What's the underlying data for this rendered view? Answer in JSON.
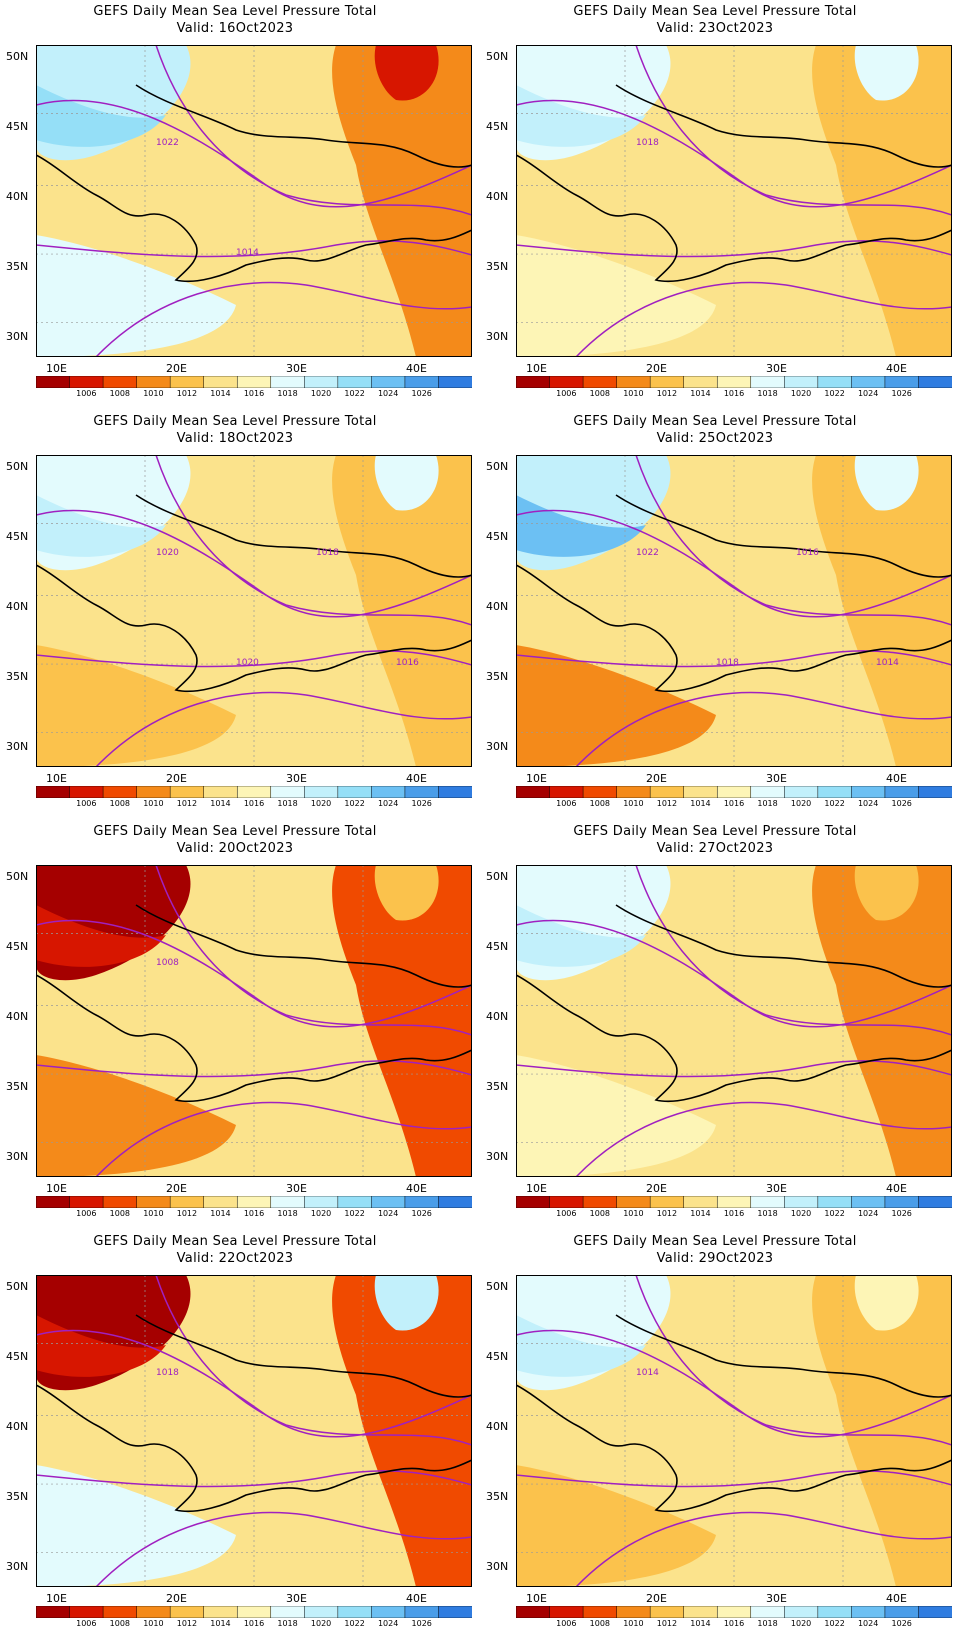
{
  "colorbar": {
    "labels": [
      "1006",
      "1008",
      "1010",
      "1012",
      "1014",
      "1016",
      "1018",
      "1020",
      "1022",
      "1024",
      "1026"
    ],
    "colors": [
      "#a50000",
      "#d71600",
      "#f04a00",
      "#f48a1a",
      "#fbc24c",
      "#fbe38c",
      "#fdf5b6",
      "#e3fbfd",
      "#c2f0fb",
      "#95dff7",
      "#6cc0f3",
      "#4a9de9",
      "#2f7ce0"
    ]
  },
  "axes": {
    "lon_ticks": [
      "10E",
      "20E",
      "30E",
      "40E"
    ],
    "lat_ticks": [
      "50N",
      "45N",
      "40N",
      "35N",
      "30N"
    ]
  },
  "panels": [
    {
      "title": "GEFS Daily Mean Sea Level Pressure Total",
      "valid": "Valid: 16Oct2023",
      "contour_labels": [
        "1022",
        "1014"
      ],
      "fields": [
        "#fbe38c",
        "#c2f0fb",
        "#95dff7",
        "#f48a1a",
        "#d71600",
        "#e3fbfd"
      ]
    },
    {
      "title": "GEFS Daily Mean Sea Level Pressure Total",
      "valid": "Valid: 23Oct2023",
      "contour_labels": [
        "1018"
      ],
      "fields": [
        "#fbe38c",
        "#e3fbfd",
        "#c2f0fb",
        "#fbc24c",
        "#e3fbfd",
        "#fdf5b6"
      ]
    },
    {
      "title": "GEFS Daily Mean Sea Level Pressure Total",
      "valid": "Valid: 18Oct2023",
      "contour_labels": [
        "1020",
        "1020",
        "1018",
        "1016"
      ],
      "fields": [
        "#fbe38c",
        "#e3fbfd",
        "#c2f0fb",
        "#fbc24c",
        "#e3fbfd",
        "#fbc24c"
      ]
    },
    {
      "title": "GEFS Daily Mean Sea Level Pressure Total",
      "valid": "Valid: 25Oct2023",
      "contour_labels": [
        "1022",
        "1018",
        "1016",
        "1014"
      ],
      "fields": [
        "#fbe38c",
        "#c2f0fb",
        "#6cc0f3",
        "#fbc24c",
        "#e3fbfd",
        "#f48a1a"
      ]
    },
    {
      "title": "GEFS Daily Mean Sea Level Pressure Total",
      "valid": "Valid: 20Oct2023",
      "contour_labels": [
        "1008"
      ],
      "fields": [
        "#fbe38c",
        "#a50000",
        "#d71600",
        "#f04a00",
        "#fbc24c",
        "#f48a1a"
      ]
    },
    {
      "title": "GEFS Daily Mean Sea Level Pressure Total",
      "valid": "Valid: 27Oct2023",
      "contour_labels": [],
      "fields": [
        "#fbe38c",
        "#e3fbfd",
        "#c2f0fb",
        "#f48a1a",
        "#fbc24c",
        "#fdf5b6"
      ]
    },
    {
      "title": "GEFS Daily Mean Sea Level Pressure Total",
      "valid": "Valid: 22Oct2023",
      "contour_labels": [
        "1018"
      ],
      "fields": [
        "#fbe38c",
        "#a50000",
        "#d71600",
        "#f04a00",
        "#c2f0fb",
        "#e3fbfd"
      ]
    },
    {
      "title": "GEFS Daily Mean Sea Level Pressure Total",
      "valid": "Valid: 29Oct2023",
      "contour_labels": [
        "1014"
      ],
      "fields": [
        "#fbe38c",
        "#e3fbfd",
        "#c2f0fb",
        "#fbc24c",
        "#fdf5b6",
        "#fbc24c"
      ]
    }
  ]
}
